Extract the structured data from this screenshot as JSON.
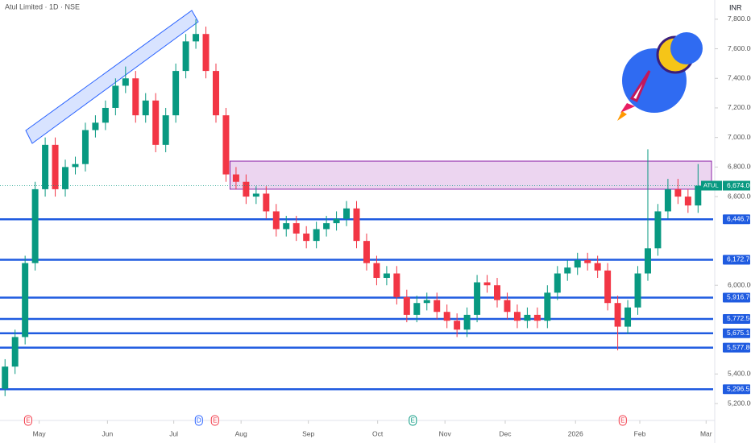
{
  "chart_data": {
    "type": "candlestick",
    "title": "Atul Limited · 1D · NSE",
    "currency": "INR",
    "up_color": "#089981",
    "down_color": "#f23645",
    "level_color": "#1f5be0",
    "open": [
      5300,
      5450,
      5650,
      6150,
      6650,
      6950,
      6650,
      6800,
      6820,
      7050,
      7100,
      7200,
      7350,
      7400,
      7150,
      7250,
      6950,
      7150,
      7450,
      7650,
      7700,
      7450,
      7150,
      6750,
      6700,
      6600,
      6620,
      6500,
      6380,
      6420,
      6350,
      6300,
      6380,
      6420,
      6450,
      6520,
      6300,
      6150,
      6050,
      6080,
      5920,
      5800,
      5880,
      5900,
      5820,
      5760,
      5700,
      5800,
      6020,
      6000,
      5900,
      5820,
      5760,
      5800,
      5760,
      5950,
      6080,
      6120,
      6170,
      6150,
      6100,
      5880,
      5720,
      5850,
      6080,
      6250,
      6500,
      6650,
      6600,
      6540
    ],
    "high": [
      5500,
      5700,
      6200,
      6700,
      7000,
      7000,
      6850,
      6870,
      7100,
      7150,
      7250,
      7400,
      7480,
      7450,
      7300,
      7300,
      7200,
      7500,
      7700,
      7800,
      7750,
      7500,
      7200,
      6800,
      6750,
      6670,
      6670,
      6550,
      6470,
      6470,
      6400,
      6430,
      6470,
      6500,
      6570,
      6570,
      6350,
      6200,
      6130,
      6130,
      5970,
      5930,
      5950,
      5950,
      5870,
      5810,
      5850,
      6070,
      6070,
      6050,
      5950,
      5870,
      5850,
      5850,
      6000,
      6130,
      6170,
      6220,
      6220,
      6200,
      6150,
      5930,
      5900,
      6130,
      6920,
      6550,
      6720,
      6720,
      6650,
      6820
    ],
    "low": [
      5250,
      5400,
      5600,
      6100,
      6600,
      6600,
      6600,
      6750,
      6770,
      7000,
      7050,
      7150,
      7300,
      7100,
      7100,
      6900,
      6900,
      7100,
      7400,
      7600,
      7400,
      7100,
      6700,
      6650,
      6550,
      6550,
      6450,
      6330,
      6330,
      6300,
      6250,
      6250,
      6330,
      6370,
      6400,
      6250,
      6100,
      6000,
      6000,
      5870,
      5750,
      5750,
      5830,
      5770,
      5710,
      5650,
      5650,
      5750,
      5950,
      5850,
      5770,
      5710,
      5710,
      5710,
      5710,
      5900,
      6030,
      6070,
      6100,
      6050,
      5830,
      5560,
      5670,
      5800,
      6030,
      6200,
      6450,
      6550,
      6490,
      6490
    ],
    "close": [
      5450,
      5650,
      6150,
      6650,
      6950,
      6650,
      6800,
      6820,
      7050,
      7100,
      7200,
      7350,
      7400,
      7150,
      7250,
      6950,
      7150,
      7450,
      7650,
      7700,
      7450,
      7150,
      6750,
      6700,
      6600,
      6620,
      6500,
      6380,
      6420,
      6350,
      6300,
      6380,
      6420,
      6450,
      6520,
      6300,
      6150,
      6050,
      6080,
      5920,
      5800,
      5880,
      5900,
      5820,
      5760,
      5700,
      5800,
      6020,
      6000,
      5900,
      5820,
      5760,
      5800,
      5760,
      5950,
      6080,
      6120,
      6170,
      6150,
      6100,
      5880,
      5720,
      5850,
      6080,
      6250,
      6500,
      6650,
      6600,
      6540,
      6674
    ],
    "xlim": [
      -0.5,
      70.5
    ],
    "xticks": [
      {
        "value": 3.4,
        "label": "May"
      },
      {
        "value": 10.2,
        "label": "Jun"
      },
      {
        "value": 16.8,
        "label": "Jul"
      },
      {
        "value": 23.5,
        "label": "Aug"
      },
      {
        "value": 30.2,
        "label": "Sep"
      },
      {
        "value": 37.1,
        "label": "Oct"
      },
      {
        "value": 43.8,
        "label": "Nov"
      },
      {
        "value": 49.8,
        "label": "Dec"
      },
      {
        "value": 56.8,
        "label": "2026"
      },
      {
        "value": 63.2,
        "label": "Feb"
      },
      {
        "value": 69.8,
        "label": "Mar"
      }
    ],
    "ylim": [
      5151,
      7930
    ],
    "yticks": [
      {
        "value": 7800,
        "label": "7,800.00"
      },
      {
        "value": 7600,
        "label": "7,600.00"
      },
      {
        "value": 7400,
        "label": "7,400.00"
      },
      {
        "value": 7200,
        "label": "7,200.00"
      },
      {
        "value": 7000,
        "label": "7,000.00"
      },
      {
        "value": 6800,
        "label": "6,800.00"
      },
      {
        "value": 6600,
        "label": "6,600.00"
      },
      {
        "value": 6000,
        "label": "6,000.00"
      },
      {
        "value": 5400,
        "label": "5,400.00"
      },
      {
        "value": 5200,
        "label": "5,200.00"
      }
    ],
    "levels": [
      {
        "value": 6446.7,
        "label": "6,446.70"
      },
      {
        "value": 6172.7,
        "label": "6,172.70"
      },
      {
        "value": 5916.7,
        "label": "5,916.70"
      },
      {
        "value": 5772.5,
        "label": "5,772.50"
      },
      {
        "value": 5675.15,
        "label": "5,675.15"
      },
      {
        "value": 5577.8,
        "label": "5,577.80"
      },
      {
        "value": 5296.55,
        "label": "5,296.55"
      }
    ],
    "last_price": {
      "value": 6674,
      "label": "6,674.00",
      "symbol": "ATUL"
    },
    "zone": {
      "low": 6650,
      "high": 6840,
      "start": 22.4
    },
    "events": [
      {
        "x": 2.3,
        "label": "E",
        "color": "#f23645"
      },
      {
        "x": 19.3,
        "label": "D",
        "color": "#2962ff"
      },
      {
        "x": 20.9,
        "label": "E",
        "color": "#f23645"
      },
      {
        "x": 40.6,
        "label": "E",
        "color": "#089981"
      },
      {
        "x": 61.5,
        "label": "E",
        "color": "#f23645"
      }
    ]
  }
}
